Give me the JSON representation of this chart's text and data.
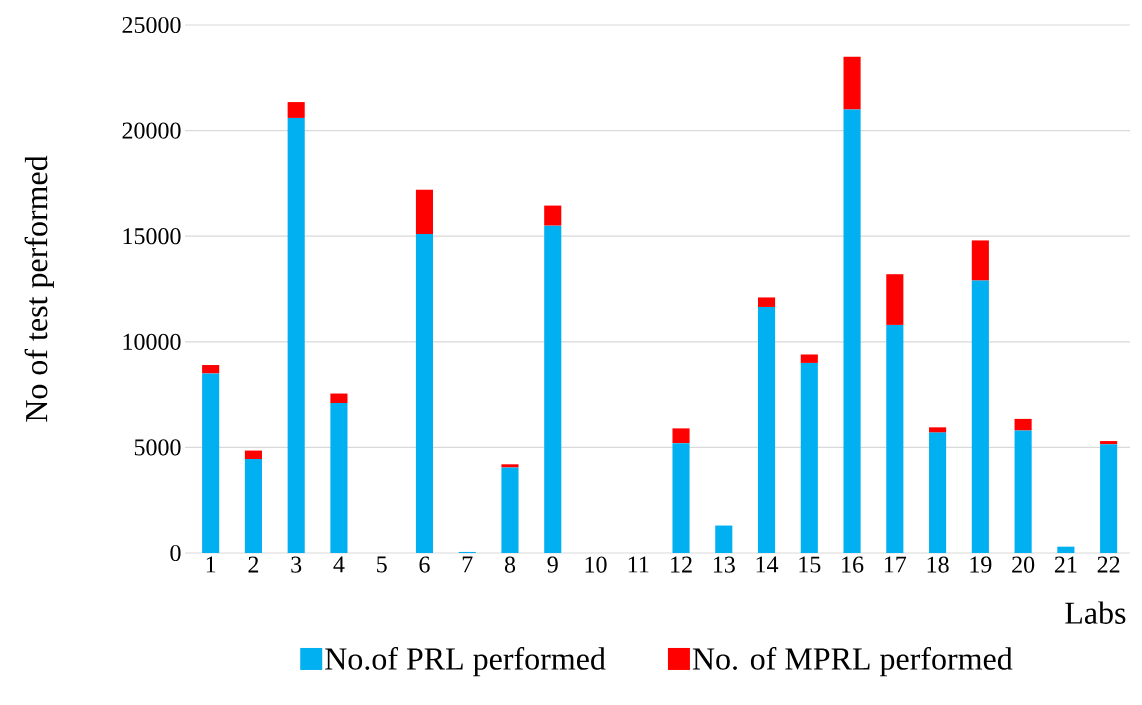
{
  "chart_data": {
    "type": "bar",
    "stacked": true,
    "xlabel": "Labs",
    "ylabel": "No of  test performed",
    "categories": [
      "1",
      "2",
      "3",
      "4",
      "5",
      "6",
      "7",
      "8",
      "9",
      "10",
      "11",
      "12",
      "13",
      "14",
      "15",
      "16",
      "17",
      "18",
      "19",
      "20",
      "21",
      "22"
    ],
    "series": [
      {
        "name": "No.of PRL performed",
        "color": "#00b0f0",
        "values": [
          8500,
          4450,
          20600,
          7100,
          0,
          15100,
          50,
          4050,
          15500,
          0,
          0,
          5200,
          1300,
          11650,
          9000,
          21000,
          10800,
          5700,
          12900,
          5800,
          300,
          5150
        ]
      },
      {
        "name": "No. of MPRL performed",
        "color": "#ff0000",
        "values": [
          400,
          400,
          750,
          450,
          0,
          2100,
          0,
          150,
          950,
          0,
          0,
          700,
          0,
          450,
          400,
          2500,
          2400,
          250,
          1900,
          550,
          0,
          150
        ]
      }
    ],
    "ylim": [
      0,
      25000
    ],
    "yticks": [
      0,
      5000,
      10000,
      15000,
      20000,
      25000
    ],
    "grid": "y",
    "legend": "bottom"
  }
}
